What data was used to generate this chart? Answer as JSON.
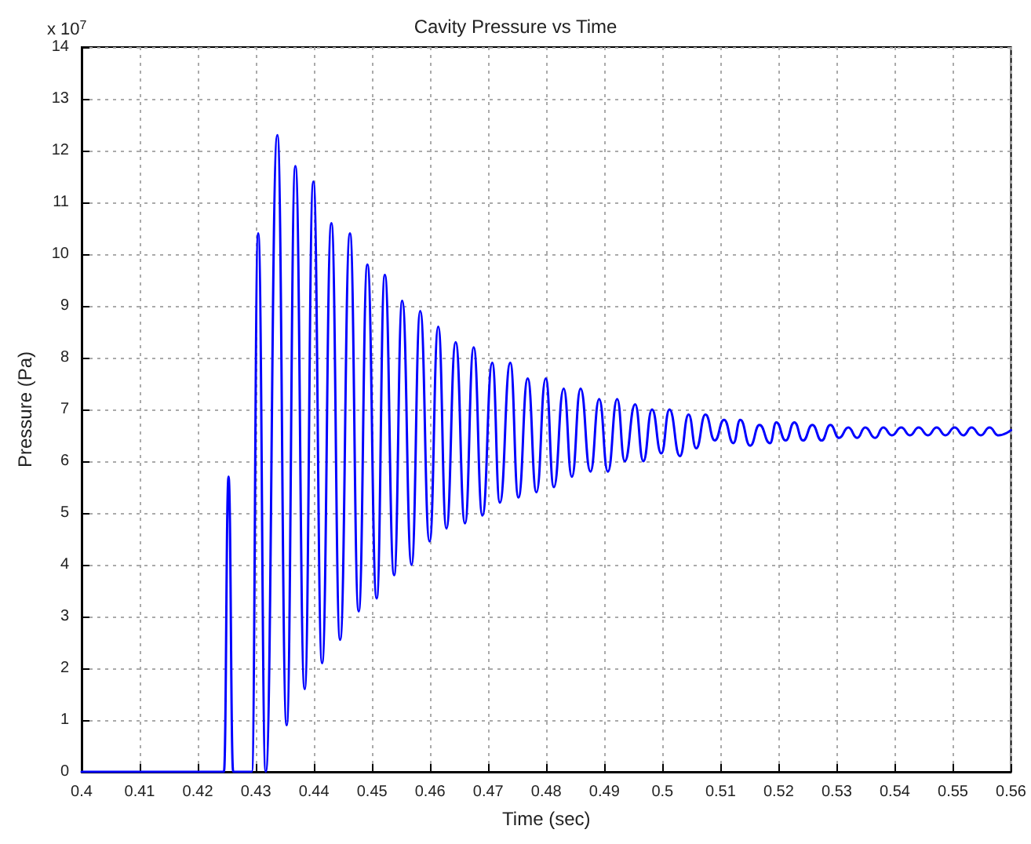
{
  "chart_data": {
    "type": "line",
    "title": "Cavity Pressure vs Time",
    "xlabel": "Time (sec)",
    "ylabel": "Pressure (Pa)",
    "annotations": [
      "x 10$^{7}$"
    ],
    "xlim": [
      0.4,
      0.56
    ],
    "xticks": [
      0.4,
      0.41,
      0.42,
      0.43,
      0.44,
      0.45,
      0.46,
      0.47,
      0.48,
      0.49,
      0.5,
      0.51,
      0.52,
      0.53,
      0.54,
      0.55,
      0.56
    ],
    "ylim": [
      0,
      14
    ],
    "yticks": [
      0,
      1,
      2,
      3,
      4,
      5,
      6,
      7,
      8,
      9,
      10,
      11,
      12,
      13,
      14
    ],
    "grid": true,
    "marker": "none",
    "line_style": "solid",
    "x": [
      0.4,
      0.4245,
      0.4253,
      0.4261,
      0.4293,
      0.4304,
      0.4317,
      0.4337,
      0.4353,
      0.4368,
      0.4384,
      0.4399,
      0.4414,
      0.443,
      0.4445,
      0.4462,
      0.4477,
      0.4492,
      0.4508,
      0.4522,
      0.4538,
      0.4552,
      0.4568,
      0.4583,
      0.4599,
      0.4614,
      0.4628,
      0.4644,
      0.466,
      0.4675,
      0.469,
      0.4707,
      0.472,
      0.4738,
      0.4752,
      0.4768,
      0.4783,
      0.4799,
      0.4813,
      0.483,
      0.4844,
      0.4859,
      0.4876,
      0.4891,
      0.4906,
      0.4922,
      0.4935,
      0.4953,
      0.4967,
      0.4982,
      0.4998,
      0.5012,
      0.503,
      0.5045,
      0.5058,
      0.5074,
      0.509,
      0.5106,
      0.5122,
      0.5134,
      0.5151,
      0.5167,
      0.5185,
      0.5196,
      0.5212,
      0.5227,
      0.5242,
      0.5258,
      0.5274,
      0.5289,
      0.5304,
      0.532,
      0.5335,
      0.5349,
      0.5366,
      0.538,
      0.5395,
      0.5411,
      0.5426,
      0.5441,
      0.5457,
      0.5472,
      0.5487,
      0.5503,
      0.5518,
      0.5532,
      0.5548,
      0.5563,
      0.5578,
      0.56
    ],
    "series": [
      {
        "color": "#0000ff",
        "values": [
          0,
          0,
          5.7,
          0,
          0,
          10.4,
          0,
          12.3,
          0.9,
          11.7,
          1.6,
          11.4,
          2.1,
          10.6,
          2.55,
          10.4,
          3.1,
          9.8,
          3.35,
          9.6,
          3.8,
          9.1,
          4.0,
          8.9,
          4.45,
          8.6,
          4.7,
          8.3,
          4.8,
          8.2,
          4.95,
          7.9,
          5.2,
          7.9,
          5.3,
          7.6,
          5.4,
          7.6,
          5.5,
          7.4,
          5.7,
          7.4,
          5.8,
          7.2,
          5.8,
          7.2,
          6.0,
          7.1,
          6.0,
          7.0,
          6.15,
          7.0,
          6.1,
          6.9,
          6.25,
          6.9,
          6.4,
          6.8,
          6.35,
          6.8,
          6.3,
          6.7,
          6.35,
          6.75,
          6.4,
          6.75,
          6.4,
          6.7,
          6.4,
          6.7,
          6.45,
          6.65,
          6.45,
          6.65,
          6.45,
          6.65,
          6.5,
          6.65,
          6.5,
          6.65,
          6.5,
          6.65,
          6.5,
          6.65,
          6.5,
          6.65,
          6.5,
          6.65,
          6.5,
          6.6
        ]
      }
    ]
  }
}
